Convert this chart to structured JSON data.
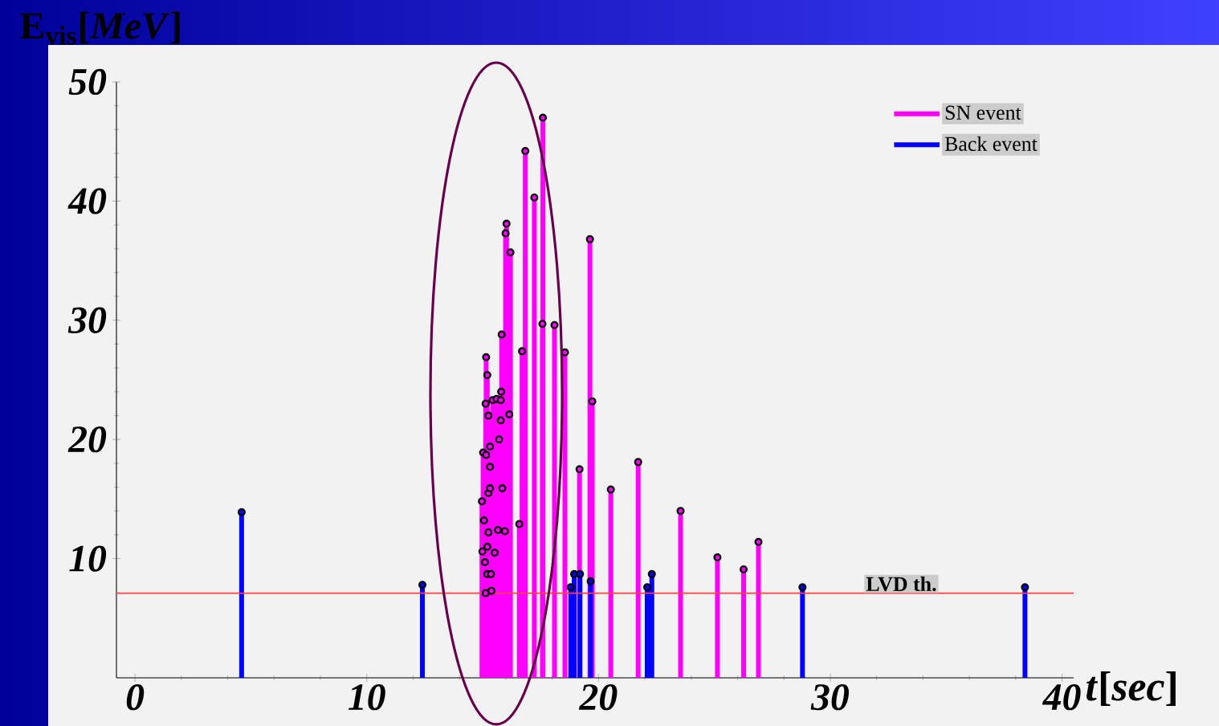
{
  "chart_data": {
    "type": "lollipop",
    "xlabel": "*t*[*sec*]",
    "ylabel": "E$_{vis}$[*MeV*]",
    "xlim": [
      -0.8,
      40.5
    ],
    "ylim": [
      0,
      50
    ],
    "xticks": [
      0,
      10,
      20,
      30,
      40
    ],
    "yticks": [
      10,
      20,
      30,
      40,
      50
    ],
    "legend": "top right",
    "marker": "circle",
    "grid": false,
    "ref_lines": [
      {
        "axis": "y",
        "value": 7.1,
        "label": "LVD th.",
        "color": "#ff4040"
      }
    ],
    "series": [
      {
        "name": "SN event",
        "color": "#ff00ff",
        "x": [
          14.97,
          14.99,
          15.02,
          15.06,
          15.1,
          15.13,
          15.13,
          15.15,
          15.15,
          15.2,
          15.2,
          15.2,
          15.25,
          15.25,
          15.25,
          15.32,
          15.32,
          15.32,
          15.36,
          15.38,
          15.43,
          15.52,
          15.6,
          15.66,
          15.71,
          15.78,
          15.78,
          15.8,
          15.82,
          15.85,
          15.96,
          15.99,
          16.03,
          16.15,
          16.2,
          16.58,
          16.7,
          16.84,
          17.23,
          17.58,
          17.6,
          18.1,
          18.55,
          19.18,
          19.63,
          19.73,
          20.53,
          21.71,
          23.54,
          25.13,
          26.26,
          26.9
        ],
        "values": [
          14.8,
          10.6,
          18.9,
          13.2,
          9.7,
          23.0,
          7.1,
          26.9,
          18.7,
          25.4,
          11.0,
          8.7,
          22.0,
          15.5,
          12.2,
          19.4,
          17.7,
          15.9,
          8.7,
          7.3,
          23.3,
          10.5,
          23.4,
          12.4,
          20.0,
          23.3,
          21.6,
          24.0,
          28.8,
          15.9,
          12.3,
          37.3,
          38.1,
          22.1,
          35.7,
          12.9,
          27.4,
          44.2,
          40.3,
          29.7,
          47.0,
          29.6,
          27.3,
          17.5,
          36.8,
          23.2,
          15.8,
          18.1,
          14.0,
          10.1,
          9.1,
          11.4
        ]
      },
      {
        "name": "Back event",
        "color": "#0000ff",
        "x": [
          4.6,
          12.4,
          18.8,
          18.95,
          19.2,
          19.66,
          22.1,
          22.3,
          28.8,
          38.4
        ],
        "values": [
          13.9,
          7.8,
          7.6,
          8.7,
          8.7,
          8.1,
          7.6,
          8.7,
          7.6,
          7.6
        ]
      }
    ]
  }
}
